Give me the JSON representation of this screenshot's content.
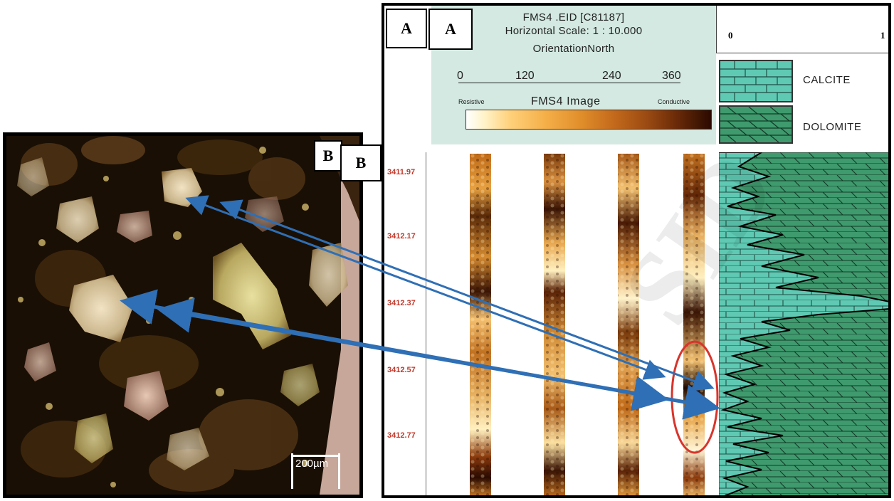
{
  "panel_a": {
    "label_outer": "A",
    "label_inner": "A",
    "header": {
      "title": "FMS4 .EID [C81187]",
      "scale": "Horizontal Scale: 1 : 10.000",
      "orientation": "OrientationNorth",
      "ticks": [
        "0",
        "120",
        "240",
        "360"
      ],
      "resistive": "Resistive",
      "image_title": "FMS4  Image",
      "conductive": "Conductive"
    },
    "scale_right": {
      "min": "0",
      "max": "1"
    },
    "legend": [
      {
        "name": "CALCITE",
        "color": "#5fc9b3"
      },
      {
        "name": "DOLOMITE",
        "color": "#3f9a6e"
      }
    ],
    "depths": [
      "3411.97",
      "3412.17",
      "3412.37",
      "3412.57",
      "3412.77"
    ]
  },
  "panel_b": {
    "label_outer": "B",
    "label_inner": "B",
    "scale_bar": "200µm"
  },
  "colors": {
    "header_bg": "#d3e9e1",
    "arrow": "#2f6fb5",
    "ellipse": "#d9342b",
    "depth_text": "#c0392b"
  }
}
